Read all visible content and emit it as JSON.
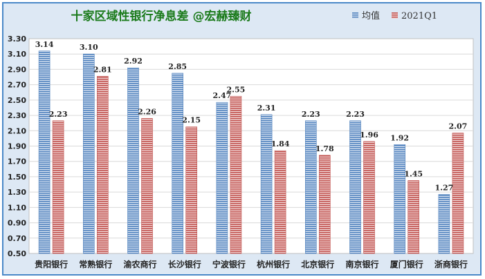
{
  "chart_data": {
    "type": "bar",
    "title": "十家区域性银行净息差 @宏赫臻财",
    "categories": [
      "贵阳银行",
      "常熟银行",
      "渝农商行",
      "长沙银行",
      "宁波银行",
      "杭州银行",
      "北京银行",
      "南京银行",
      "厦门银行",
      "浙商银行"
    ],
    "series": [
      {
        "name": "均值",
        "values": [
          3.14,
          3.1,
          2.92,
          2.85,
          2.47,
          2.31,
          2.23,
          2.23,
          1.92,
          1.27
        ],
        "color": "#4f81bd"
      },
      {
        "name": "2021Q1",
        "values": [
          2.23,
          2.81,
          2.26,
          2.15,
          2.55,
          1.84,
          1.78,
          1.96,
          1.45,
          2.07
        ],
        "color": "#c0504d"
      }
    ],
    "data_labels": {
      "series0": [
        "3.14",
        "3.10",
        "2.92",
        "2.85",
        "2.47",
        "2.31",
        "2.23",
        "2.23",
        "1.92",
        "1.27"
      ],
      "series1": [
        "2.23",
        "2.81",
        "2.26",
        "2.15",
        "2.55",
        "1.84",
        "1.78",
        "1.96",
        "1.45",
        "2.07"
      ]
    },
    "yticks": [
      "0.50",
      "0.70",
      "0.90",
      "1.10",
      "1.30",
      "1.50",
      "1.70",
      "1.90",
      "2.10",
      "2.30",
      "2.50",
      "2.70",
      "2.90",
      "3.10",
      "3.30"
    ],
    "ylim": [
      0.5,
      3.3
    ],
    "grid": true,
    "legend_position": "top-right",
    "title_color": "#1a7a1a"
  }
}
